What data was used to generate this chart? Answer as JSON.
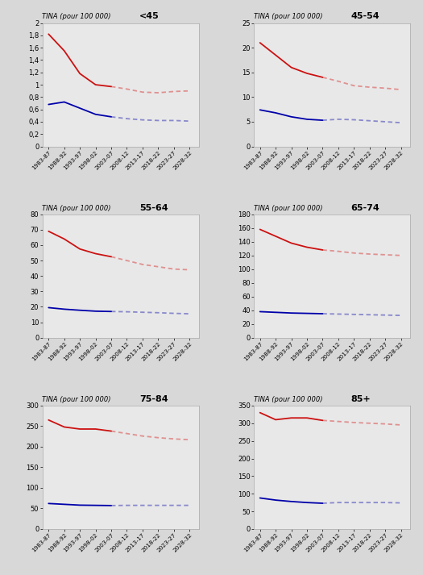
{
  "panels": [
    {
      "title": "<45",
      "ylim": [
        0,
        2
      ],
      "ytick_step": 0.2,
      "red_solid": [
        1.82,
        1.55,
        1.18,
        1.0,
        0.97
      ],
      "red_dash": [
        0.93,
        0.88,
        0.87,
        0.89,
        0.9
      ],
      "blue_solid": [
        0.68,
        0.72,
        0.62,
        0.52,
        0.48
      ],
      "blue_dash": [
        0.45,
        0.43,
        0.42,
        0.42,
        0.41
      ]
    },
    {
      "title": "45-54",
      "ylim": [
        0,
        25
      ],
      "ytick_step": 5,
      "red_solid": [
        21.0,
        18.5,
        16.0,
        14.8,
        14.0
      ],
      "red_dash": [
        13.2,
        12.3,
        12.0,
        11.8,
        11.5
      ],
      "blue_solid": [
        7.4,
        6.8,
        6.0,
        5.5,
        5.3
      ],
      "blue_dash": [
        5.5,
        5.4,
        5.2,
        5.0,
        4.8
      ]
    },
    {
      "title": "55-64",
      "ylim": [
        0,
        80
      ],
      "ytick_step": 10,
      "red_solid": [
        69.0,
        64.0,
        57.5,
        54.5,
        52.5
      ],
      "red_dash": [
        50.0,
        47.5,
        46.0,
        44.5,
        44.0
      ],
      "blue_solid": [
        19.5,
        18.5,
        17.8,
        17.2,
        17.0
      ],
      "blue_dash": [
        16.8,
        16.5,
        16.2,
        15.8,
        15.5
      ]
    },
    {
      "title": "65-74",
      "ylim": [
        0,
        180
      ],
      "ytick_step": 20,
      "red_solid": [
        158.0,
        148.0,
        138.0,
        132.0,
        128.0
      ],
      "red_dash": [
        126.0,
        123.5,
        122.0,
        121.0,
        120.0
      ],
      "blue_solid": [
        38.0,
        37.0,
        36.0,
        35.5,
        35.0
      ],
      "blue_dash": [
        34.5,
        34.0,
        33.5,
        33.0,
        32.5
      ]
    },
    {
      "title": "75-84",
      "ylim": [
        0,
        300
      ],
      "ytick_step": 50,
      "red_solid": [
        265.0,
        248.0,
        243.0,
        243.0,
        238.0
      ],
      "red_dash": [
        232.0,
        226.0,
        222.0,
        219.0,
        217.0
      ],
      "blue_solid": [
        62.0,
        60.0,
        58.0,
        57.5,
        57.0
      ],
      "blue_dash": [
        57.5,
        57.5,
        57.5,
        57.5,
        57.5
      ]
    },
    {
      "title": "85+",
      "ylim": [
        0,
        350
      ],
      "ytick_step": 50,
      "red_solid": [
        330.0,
        310.0,
        315.0,
        315.0,
        308.0
      ],
      "red_dash": [
        305.0,
        302.0,
        300.0,
        298.0,
        295.0
      ],
      "blue_solid": [
        88.0,
        82.0,
        78.0,
        75.0,
        73.0
      ],
      "blue_dash": [
        75.0,
        75.0,
        75.0,
        75.0,
        74.0
      ]
    }
  ],
  "x_solid": [
    1983,
    1988,
    1993,
    1998,
    2003
  ],
  "x_dash": [
    2008,
    2013,
    2018,
    2023,
    2028
  ],
  "xtick_labels": [
    "1983-87",
    "1988-92",
    "1993-97",
    "1998-02",
    "2003-07",
    "2008-12",
    "2013-17",
    "2018-22",
    "2023-27",
    "2028-32"
  ],
  "xtick_positions": [
    1983,
    1988,
    1993,
    1998,
    2003,
    2008,
    2013,
    2018,
    2023,
    2028
  ],
  "red_solid_color": "#cc1111",
  "red_dash_color": "#e09090",
  "blue_solid_color": "#0000aa",
  "blue_dash_color": "#8888cc",
  "bg_color": "#e8e8e8",
  "fig_bg": "#d8d8d8",
  "ylabel_text": "TINA (pour 100 000)",
  "linewidth": 1.3
}
